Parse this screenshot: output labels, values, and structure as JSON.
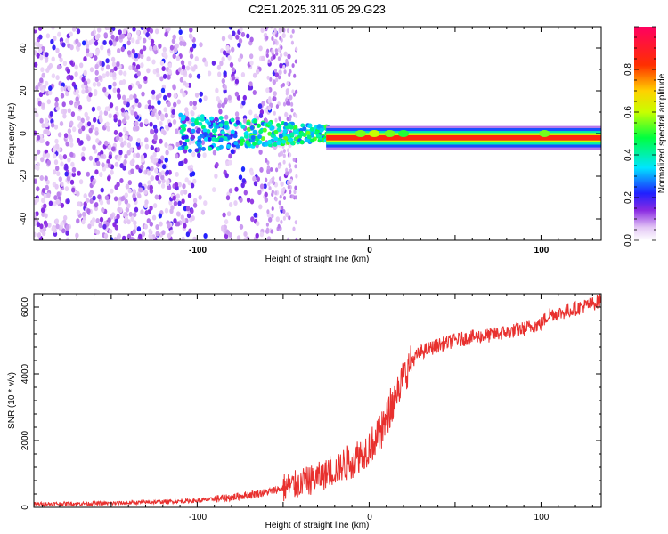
{
  "chart_data": [
    {
      "type": "heatmap",
      "title": "C2E1.2025.311.05.29.G23",
      "xlabel": "Height of straight line (km)",
      "ylabel": "Frequency (Hz)",
      "xlim": [
        -195,
        135
      ],
      "ylim": [
        -50,
        50
      ],
      "x_ticks": [
        "-100",
        "0",
        "100"
      ],
      "y_ticks": [
        "-40",
        "-20",
        "0",
        "20",
        "40"
      ],
      "colorbar": {
        "label": "Normalized spectral amplitude",
        "range": [
          0,
          1
        ],
        "ticks": [
          "0.0",
          "0.2",
          "0.4",
          "0.6",
          "0.8"
        ]
      },
      "features": [
        {
          "region": "-195 to -50 km",
          "description": "broadband noise",
          "freq_range": [
            -50,
            50
          ],
          "amplitude": 0.15
        },
        {
          "region": "-110 to -25 km",
          "description": "emerging signal near 0 Hz",
          "freq_range": [
            -8,
            8
          ],
          "amplitude": 0.35
        },
        {
          "region": "-25 to 135 km",
          "description": "narrow line",
          "freq_center": -2,
          "amplitude": 0.95
        }
      ]
    },
    {
      "type": "line",
      "xlabel": "Height of straight line (km)",
      "ylabel": "SNR (10 * v/v)",
      "xlim": [
        -195,
        135
      ],
      "ylim": [
        0,
        6400
      ],
      "x_ticks": [
        "-100",
        "0",
        "100"
      ],
      "y_ticks": [
        "0",
        "2000",
        "4000",
        "6000"
      ],
      "series": [
        {
          "name": "SNR",
          "color": "#e8302e",
          "x": [
            -195,
            -150,
            -100,
            -80,
            -60,
            -40,
            -30,
            -20,
            -10,
            0,
            5,
            10,
            15,
            20,
            25,
            30,
            40,
            50,
            60,
            70,
            80,
            90,
            100,
            105,
            110,
            120,
            130,
            135
          ],
          "y": [
            100,
            120,
            200,
            300,
            450,
            700,
            900,
            1100,
            1400,
            1800,
            2100,
            2600,
            3300,
            3900,
            4400,
            4650,
            4850,
            5000,
            5100,
            5150,
            5250,
            5350,
            5500,
            5800,
            5800,
            5950,
            6100,
            6200
          ]
        }
      ]
    }
  ]
}
